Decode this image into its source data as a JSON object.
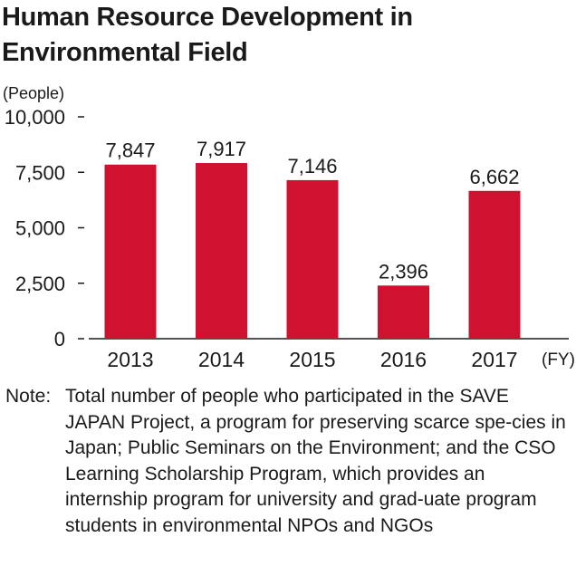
{
  "title": "Human Resource Development in Environmental Field",
  "chart_data": {
    "type": "bar",
    "title": "Human Resource Development in Environmental Field",
    "ylabel": "(People)",
    "xlabel": "(FY)",
    "categories": [
      "2013",
      "2014",
      "2015",
      "2016",
      "2017"
    ],
    "values": [
      7847,
      7917,
      7146,
      2396,
      6662
    ],
    "value_labels": [
      "7,847",
      "7,917",
      "7,146",
      "2,396",
      "6,662"
    ],
    "yticks": [
      0,
      2500,
      5000,
      7500,
      10000
    ],
    "ytick_labels": [
      "0",
      "2,500",
      "5,000",
      "7,500",
      "10,000"
    ],
    "ylim": [
      0,
      10000
    ],
    "grid": false,
    "bar_color": "#d01231"
  },
  "note": {
    "label": "Note:",
    "text": "Total number of people who participated in the SAVE JAPAN Project, a program for preserving scarce spe-cies in Japan; Public Seminars on the Environment; and the CSO Learning Scholarship Program, which provides an internship program for university and grad-uate program students in environmental NPOs and NGOs"
  }
}
